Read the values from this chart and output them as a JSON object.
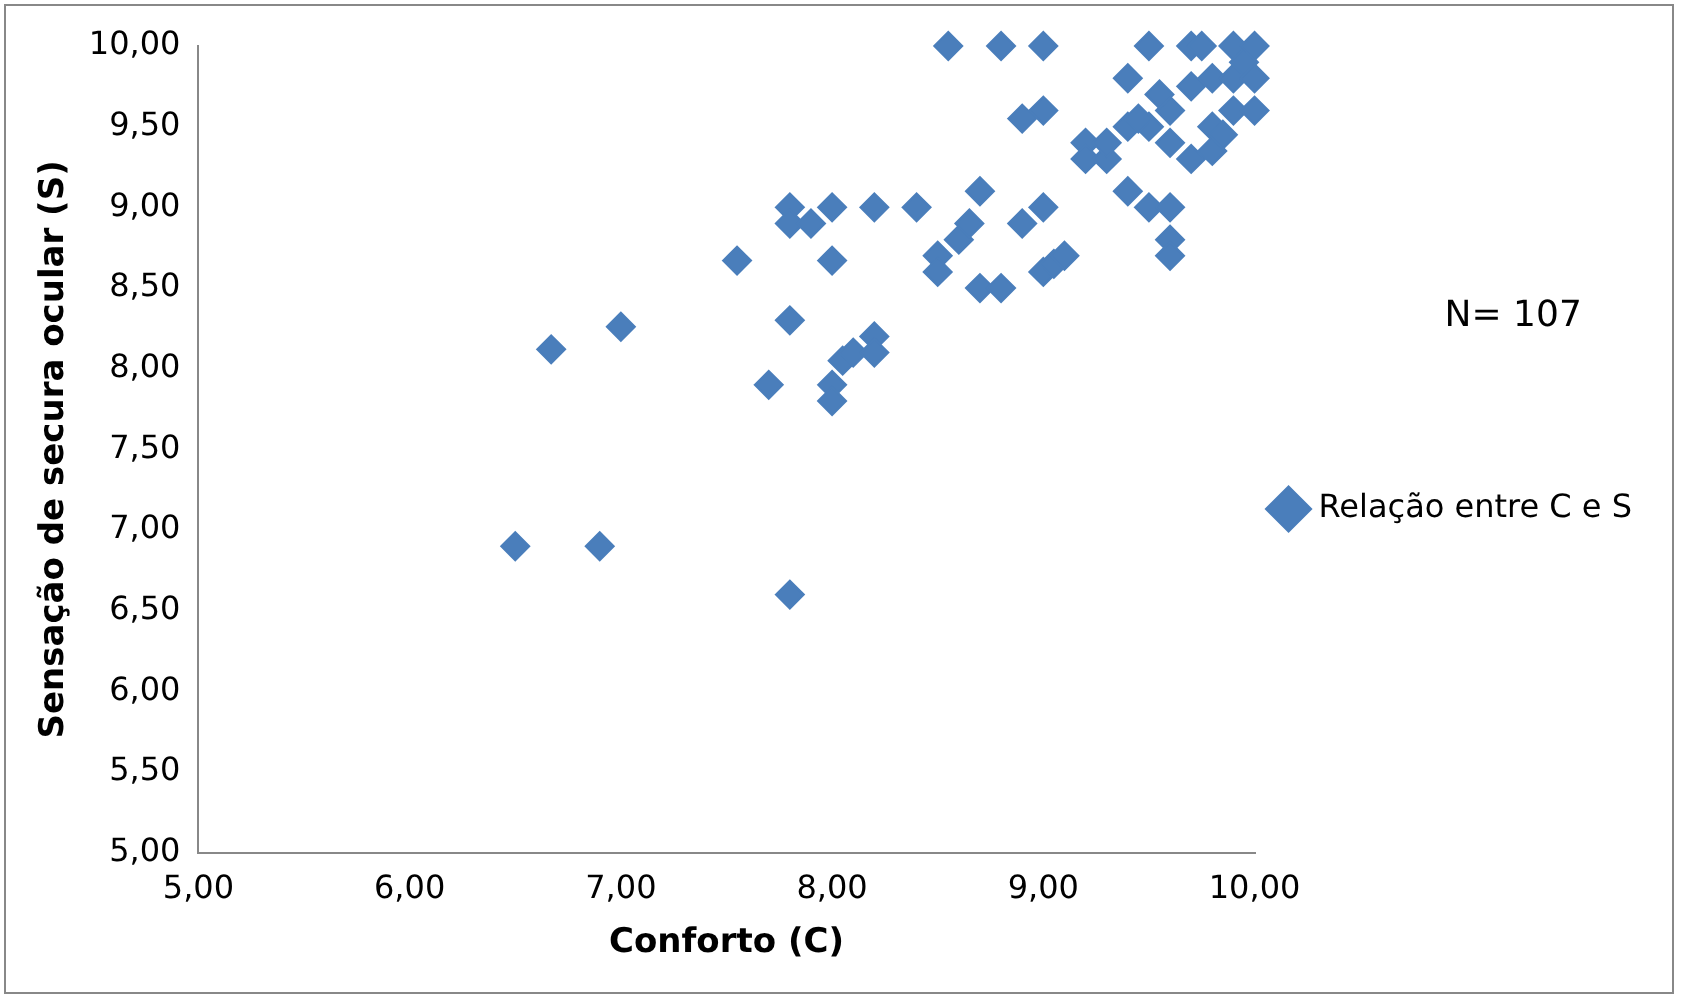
{
  "chart_data": {
    "type": "scatter",
    "xlabel": "Conforto (C)",
    "ylabel": "Sensação de secura ocular (S)",
    "annotations": [
      "N= 107"
    ],
    "xlim": [
      5,
      10
    ],
    "xticks": [
      {
        "value": 5,
        "label": "5,00"
      },
      {
        "value": 6,
        "label": "6,00"
      },
      {
        "value": 7,
        "label": "7,00"
      },
      {
        "value": 8,
        "label": "8,00"
      },
      {
        "value": 9,
        "label": "9,00"
      },
      {
        "value": 10,
        "label": "10,00"
      }
    ],
    "ylim": [
      5,
      10
    ],
    "yticks": [
      {
        "value": 5,
        "label": "5,00"
      },
      {
        "value": 5.5,
        "label": "5,50"
      },
      {
        "value": 6,
        "label": "6,00"
      },
      {
        "value": 6.5,
        "label": "6,50"
      },
      {
        "value": 7,
        "label": "7,00"
      },
      {
        "value": 7.5,
        "label": "7,50"
      },
      {
        "value": 8,
        "label": "8,00"
      },
      {
        "value": 8.5,
        "label": "8,50"
      },
      {
        "value": 9,
        "label": "9,00"
      },
      {
        "value": 9.5,
        "label": "9,50"
      },
      {
        "value": 10,
        "label": "10,00"
      }
    ],
    "grid": false,
    "legend": "right",
    "marker": "diamond",
    "series": [
      {
        "name": "Relação entre C e S",
        "color": "#4a7ebb",
        "x": [
          6.5,
          6.9,
          6.67,
          7.0,
          7.55,
          7.8,
          7.7,
          7.8,
          7.8,
          7.8,
          7.9,
          8.0,
          8.0,
          8.0,
          8.0,
          8.05,
          8.1,
          8.2,
          8.2,
          8.2,
          8.4,
          8.5,
          8.5,
          8.55,
          8.6,
          8.65,
          8.7,
          8.7,
          8.8,
          8.8,
          8.9,
          8.9,
          9.0,
          9.0,
          9.0,
          9.0,
          9.05,
          9.1,
          9.2,
          9.2,
          9.3,
          9.4,
          9.4,
          9.4,
          9.5,
          9.5,
          9.5,
          9.6,
          9.6,
          9.6,
          9.6,
          9.6,
          9.7,
          9.7,
          9.7,
          9.75,
          9.8,
          9.8,
          9.8,
          9.85,
          9.9,
          9.9,
          9.9,
          9.95,
          10.0,
          10.0,
          10.0,
          9.55,
          9.3,
          9.45
        ],
        "values": [
          6.9,
          6.9,
          8.12,
          8.26,
          8.67,
          6.6,
          7.9,
          8.3,
          9.0,
          8.9,
          8.9,
          9.0,
          8.67,
          7.9,
          7.8,
          8.05,
          8.1,
          8.2,
          8.1,
          9.0,
          9.0,
          8.7,
          8.6,
          10.0,
          8.8,
          8.9,
          9.1,
          8.5,
          10.0,
          8.5,
          9.55,
          8.9,
          10.0,
          9.6,
          8.6,
          9.0,
          8.65,
          8.7,
          9.4,
          9.3,
          9.3,
          9.5,
          9.8,
          9.1,
          10.0,
          9.5,
          9.0,
          9.6,
          9.4,
          9.0,
          8.8,
          8.7,
          10.0,
          9.75,
          9.3,
          10.0,
          9.8,
          9.5,
          9.35,
          9.45,
          10.0,
          9.8,
          9.6,
          9.9,
          10.0,
          9.8,
          9.6,
          9.7,
          9.4,
          9.55
        ]
      }
    ]
  }
}
